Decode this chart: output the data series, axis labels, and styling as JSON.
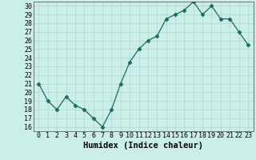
{
  "xlabel": "Humidex (Indice chaleur)",
  "x_values": [
    0,
    1,
    2,
    3,
    4,
    5,
    6,
    7,
    8,
    9,
    10,
    11,
    12,
    13,
    14,
    15,
    16,
    17,
    18,
    19,
    20,
    21,
    22,
    23
  ],
  "y_values": [
    21,
    19,
    18,
    19.5,
    18.5,
    18,
    17,
    16,
    18,
    21,
    23.5,
    25,
    26,
    26.5,
    28.5,
    29,
    29.5,
    30.5,
    29,
    30,
    28.5,
    28.5,
    27,
    25.5
  ],
  "ylim": [
    15.5,
    30.5
  ],
  "yticks": [
    16,
    17,
    18,
    19,
    20,
    21,
    22,
    23,
    24,
    25,
    26,
    27,
    28,
    29,
    30
  ],
  "line_color": "#1a6b5a",
  "marker": "D",
  "marker_size": 2.5,
  "background_color": "#cceee8",
  "grid_color": "#aad8d0",
  "xlabel_fontsize": 7.5,
  "tick_fontsize": 6.0
}
